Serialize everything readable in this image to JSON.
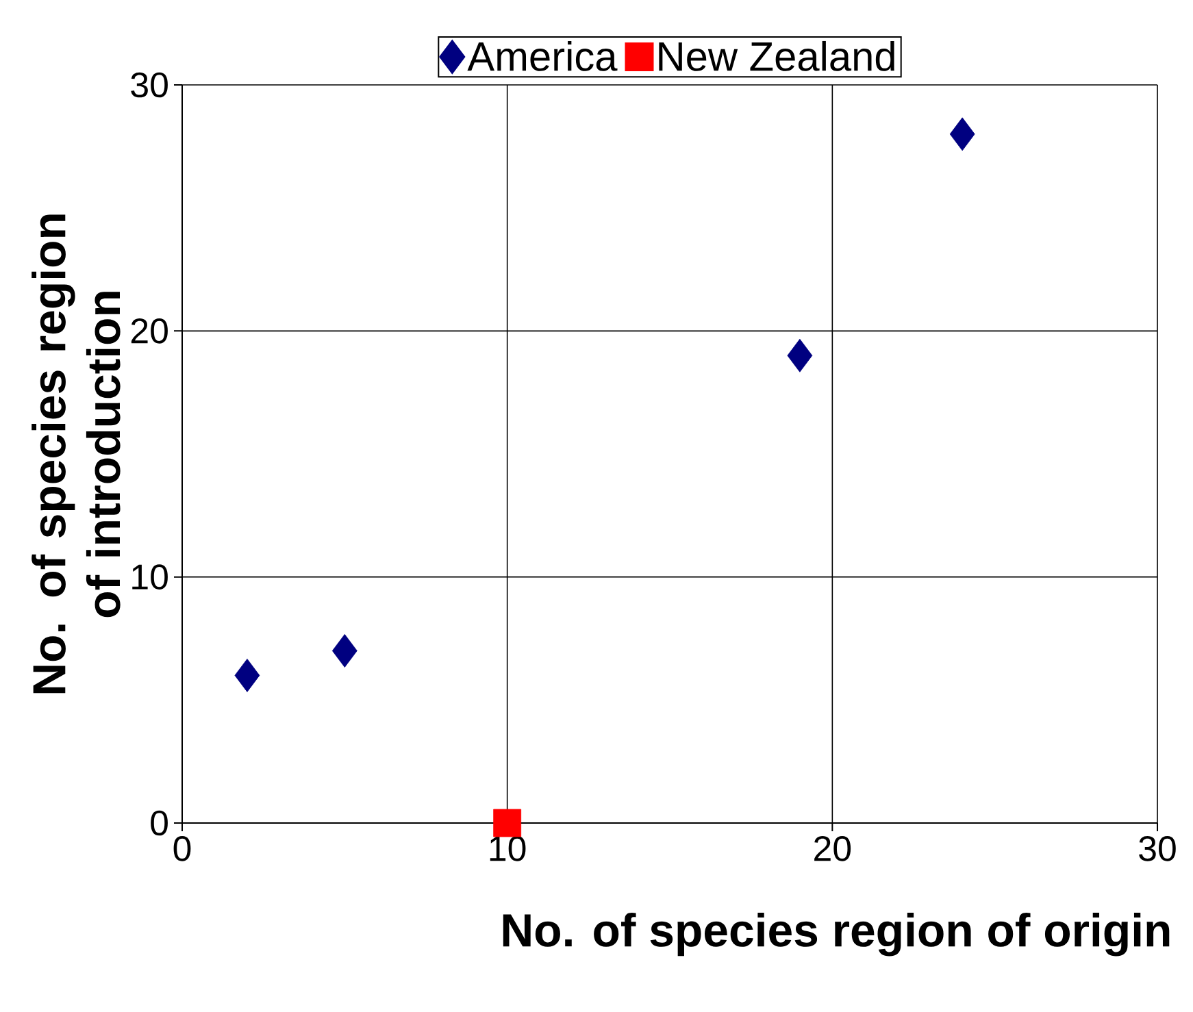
{
  "chart_data": {
    "type": "scatter",
    "xlabel": "No. of species region of origin",
    "ylabel": "No. of species region of introduction",
    "series": [
      {
        "name": "America",
        "color": "#000080",
        "marker": "diamond",
        "x": [
          2,
          5,
          19,
          24
        ],
        "values": [
          6,
          7,
          19,
          28
        ]
      },
      {
        "name": "New Zealand",
        "color": "#ff0000",
        "marker": "square",
        "x": [
          10
        ],
        "values": [
          0
        ]
      }
    ],
    "xlim": [
      0,
      30
    ],
    "ylim": [
      0,
      30
    ],
    "xticks": [
      0,
      10,
      20,
      30
    ],
    "yticks": [
      0,
      10,
      20,
      30
    ],
    "grid": true,
    "legend": "top"
  }
}
